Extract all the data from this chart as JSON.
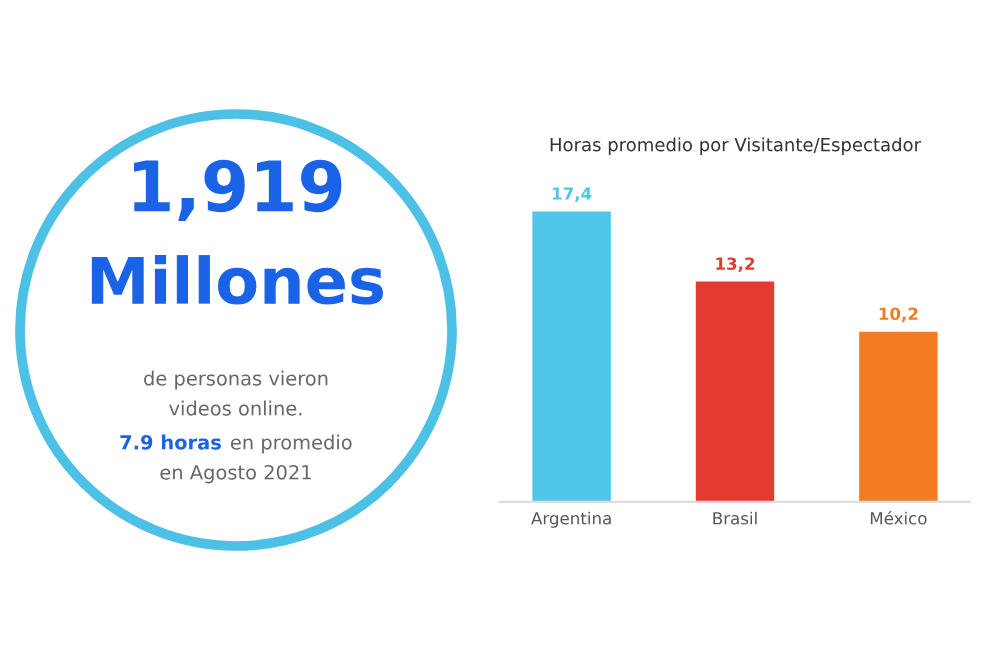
{
  "chart_data": [
    {
      "type": "other",
      "annotations": [
        "1,919",
        "Millones",
        "de personas vieron",
        "videos online.",
        "7.9 horas",
        "en promedio",
        "en Agosto 2021"
      ]
    },
    {
      "type": "bar",
      "title": "Horas promedio por Visitante/Espectador",
      "categories": [
        "Argentina",
        "Brasil",
        "México"
      ],
      "values": [
        17.4,
        13.2,
        10.2
      ],
      "colors": [
        "#4fc6e9",
        "#e53a2f",
        "#f47c20"
      ],
      "value_labels": [
        "17,4",
        "13,2",
        "10,2"
      ]
    }
  ]
}
